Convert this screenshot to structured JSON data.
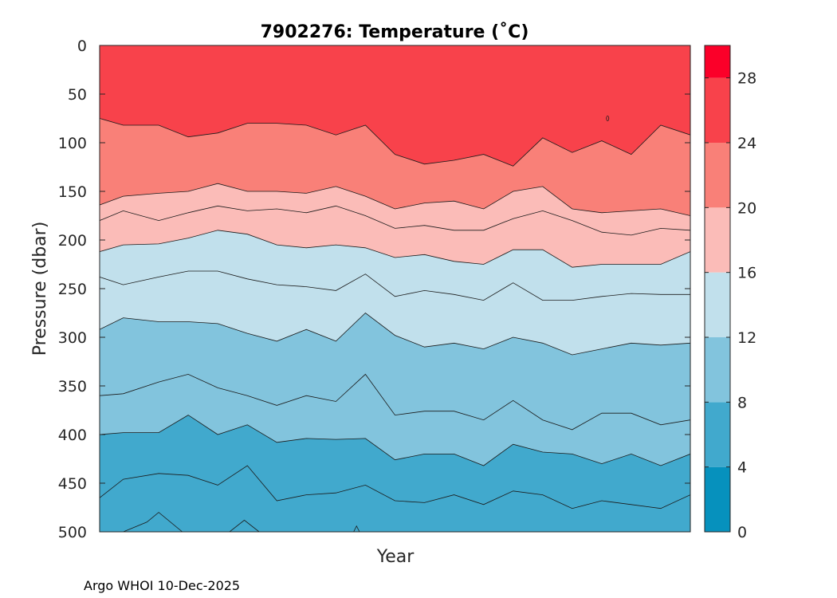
{
  "chart_data": {
    "type": "contour",
    "title": "7902276:  Temperature (˚C)",
    "xlabel": "Year",
    "ylabel": "Pressure (dbar)",
    "ylim": [
      0,
      500
    ],
    "y_ticks": [
      "0",
      "50",
      "100",
      "150",
      "200",
      "250",
      "300",
      "350",
      "400",
      "450",
      "500"
    ],
    "colorbar": {
      "range": [
        0,
        30
      ],
      "tick_labels": [
        "0",
        "4",
        "8",
        "12",
        "16",
        "20",
        "24",
        "28"
      ],
      "bands": [
        {
          "from": 0,
          "to": 4,
          "color": "#0691bd"
        },
        {
          "from": 4,
          "to": 8,
          "color": "#41a9cd"
        },
        {
          "from": 8,
          "to": 12,
          "color": "#82c4dd"
        },
        {
          "from": 12,
          "to": 16,
          "color": "#c1e0ec"
        },
        {
          "from": 16,
          "to": 20,
          "color": "#fbbcb8"
        },
        {
          "from": 20,
          "to": 24,
          "color": "#f98078"
        },
        {
          "from": 24,
          "to": 28,
          "color": "#f8424b"
        },
        {
          "from": 28,
          "to": 30,
          "color": "#fb0029"
        }
      ]
    },
    "x_profile_fraction": [
      0,
      0.04,
      0.1,
      0.15,
      0.2,
      0.25,
      0.3,
      0.35,
      0.4,
      0.45,
      0.5,
      0.55,
      0.6,
      0.65,
      0.7,
      0.75,
      0.8,
      0.85,
      0.9,
      0.95,
      1.0
    ],
    "isotherms": [
      {
        "level": 24,
        "below_color": "#f98078",
        "depth": [
          75,
          82,
          82,
          94,
          90,
          80,
          80,
          82,
          92,
          82,
          112,
          122,
          118,
          112,
          124,
          95,
          110,
          98,
          112,
          82,
          92
        ]
      },
      {
        "level": 20,
        "below_color": "#fbbcb8",
        "depth": [
          164,
          155,
          152,
          150,
          142,
          150,
          150,
          152,
          145,
          155,
          168,
          162,
          160,
          168,
          150,
          145,
          168,
          172,
          170,
          168,
          175
        ]
      },
      {
        "level": 18,
        "below_color": "#fbbcb8",
        "depth": [
          180,
          170,
          180,
          172,
          165,
          170,
          168,
          172,
          165,
          175,
          188,
          185,
          190,
          190,
          178,
          170,
          180,
          192,
          195,
          188,
          190
        ],
        "line_only": true
      },
      {
        "level": 16,
        "below_color": "#c1e0ec",
        "depth": [
          212,
          205,
          204,
          198,
          190,
          194,
          205,
          208,
          205,
          208,
          218,
          215,
          222,
          225,
          210,
          210,
          228,
          225,
          225,
          225,
          212
        ]
      },
      {
        "level": 14,
        "below_color": "#c1e0ec",
        "depth": [
          238,
          246,
          238,
          232,
          232,
          240,
          246,
          248,
          252,
          235,
          258,
          252,
          256,
          262,
          244,
          262,
          262,
          258,
          255,
          256,
          256
        ],
        "line_only": true
      },
      {
        "level": 12,
        "below_color": "#82c4dd",
        "depth": [
          292,
          280,
          284,
          284,
          286,
          296,
          304,
          292,
          304,
          275,
          298,
          310,
          306,
          312,
          300,
          306,
          318,
          312,
          306,
          308,
          306
        ]
      },
      {
        "level": 10,
        "below_color": "#82c4dd",
        "depth": [
          360,
          358,
          346,
          338,
          352,
          360,
          370,
          360,
          366,
          338,
          380,
          376,
          376,
          385,
          365,
          385,
          395,
          378,
          378,
          390,
          385
        ],
        "line_only": true
      },
      {
        "level": 8,
        "below_color": "#41a9cd",
        "depth": [
          400,
          398,
          398,
          380,
          400,
          390,
          408,
          404,
          405,
          404,
          426,
          420,
          420,
          432,
          410,
          418,
          420,
          430,
          420,
          432,
          420
        ]
      },
      {
        "level": 6,
        "below_color": "#41a9cd",
        "depth": [
          465,
          446,
          440,
          442,
          452,
          432,
          468,
          462,
          460,
          452,
          468,
          470,
          462,
          472,
          458,
          462,
          476,
          468,
          472,
          476,
          462
        ],
        "line_only": true
      }
    ],
    "deep_contours": [
      {
        "points": [
          [
            0.04,
            500
          ],
          [
            0.08,
            490
          ],
          [
            0.1,
            480
          ],
          [
            0.14,
            500
          ]
        ]
      },
      {
        "points": [
          [
            0.22,
            500
          ],
          [
            0.245,
            488
          ],
          [
            0.27,
            500
          ]
        ]
      },
      {
        "points": [
          [
            0.43,
            500
          ],
          [
            0.435,
            494
          ],
          [
            0.44,
            500
          ]
        ]
      }
    ],
    "small_feature": {
      "x": 0.86,
      "y": 75
    }
  },
  "credit": "Argo WHOI 10-Dec-2025"
}
